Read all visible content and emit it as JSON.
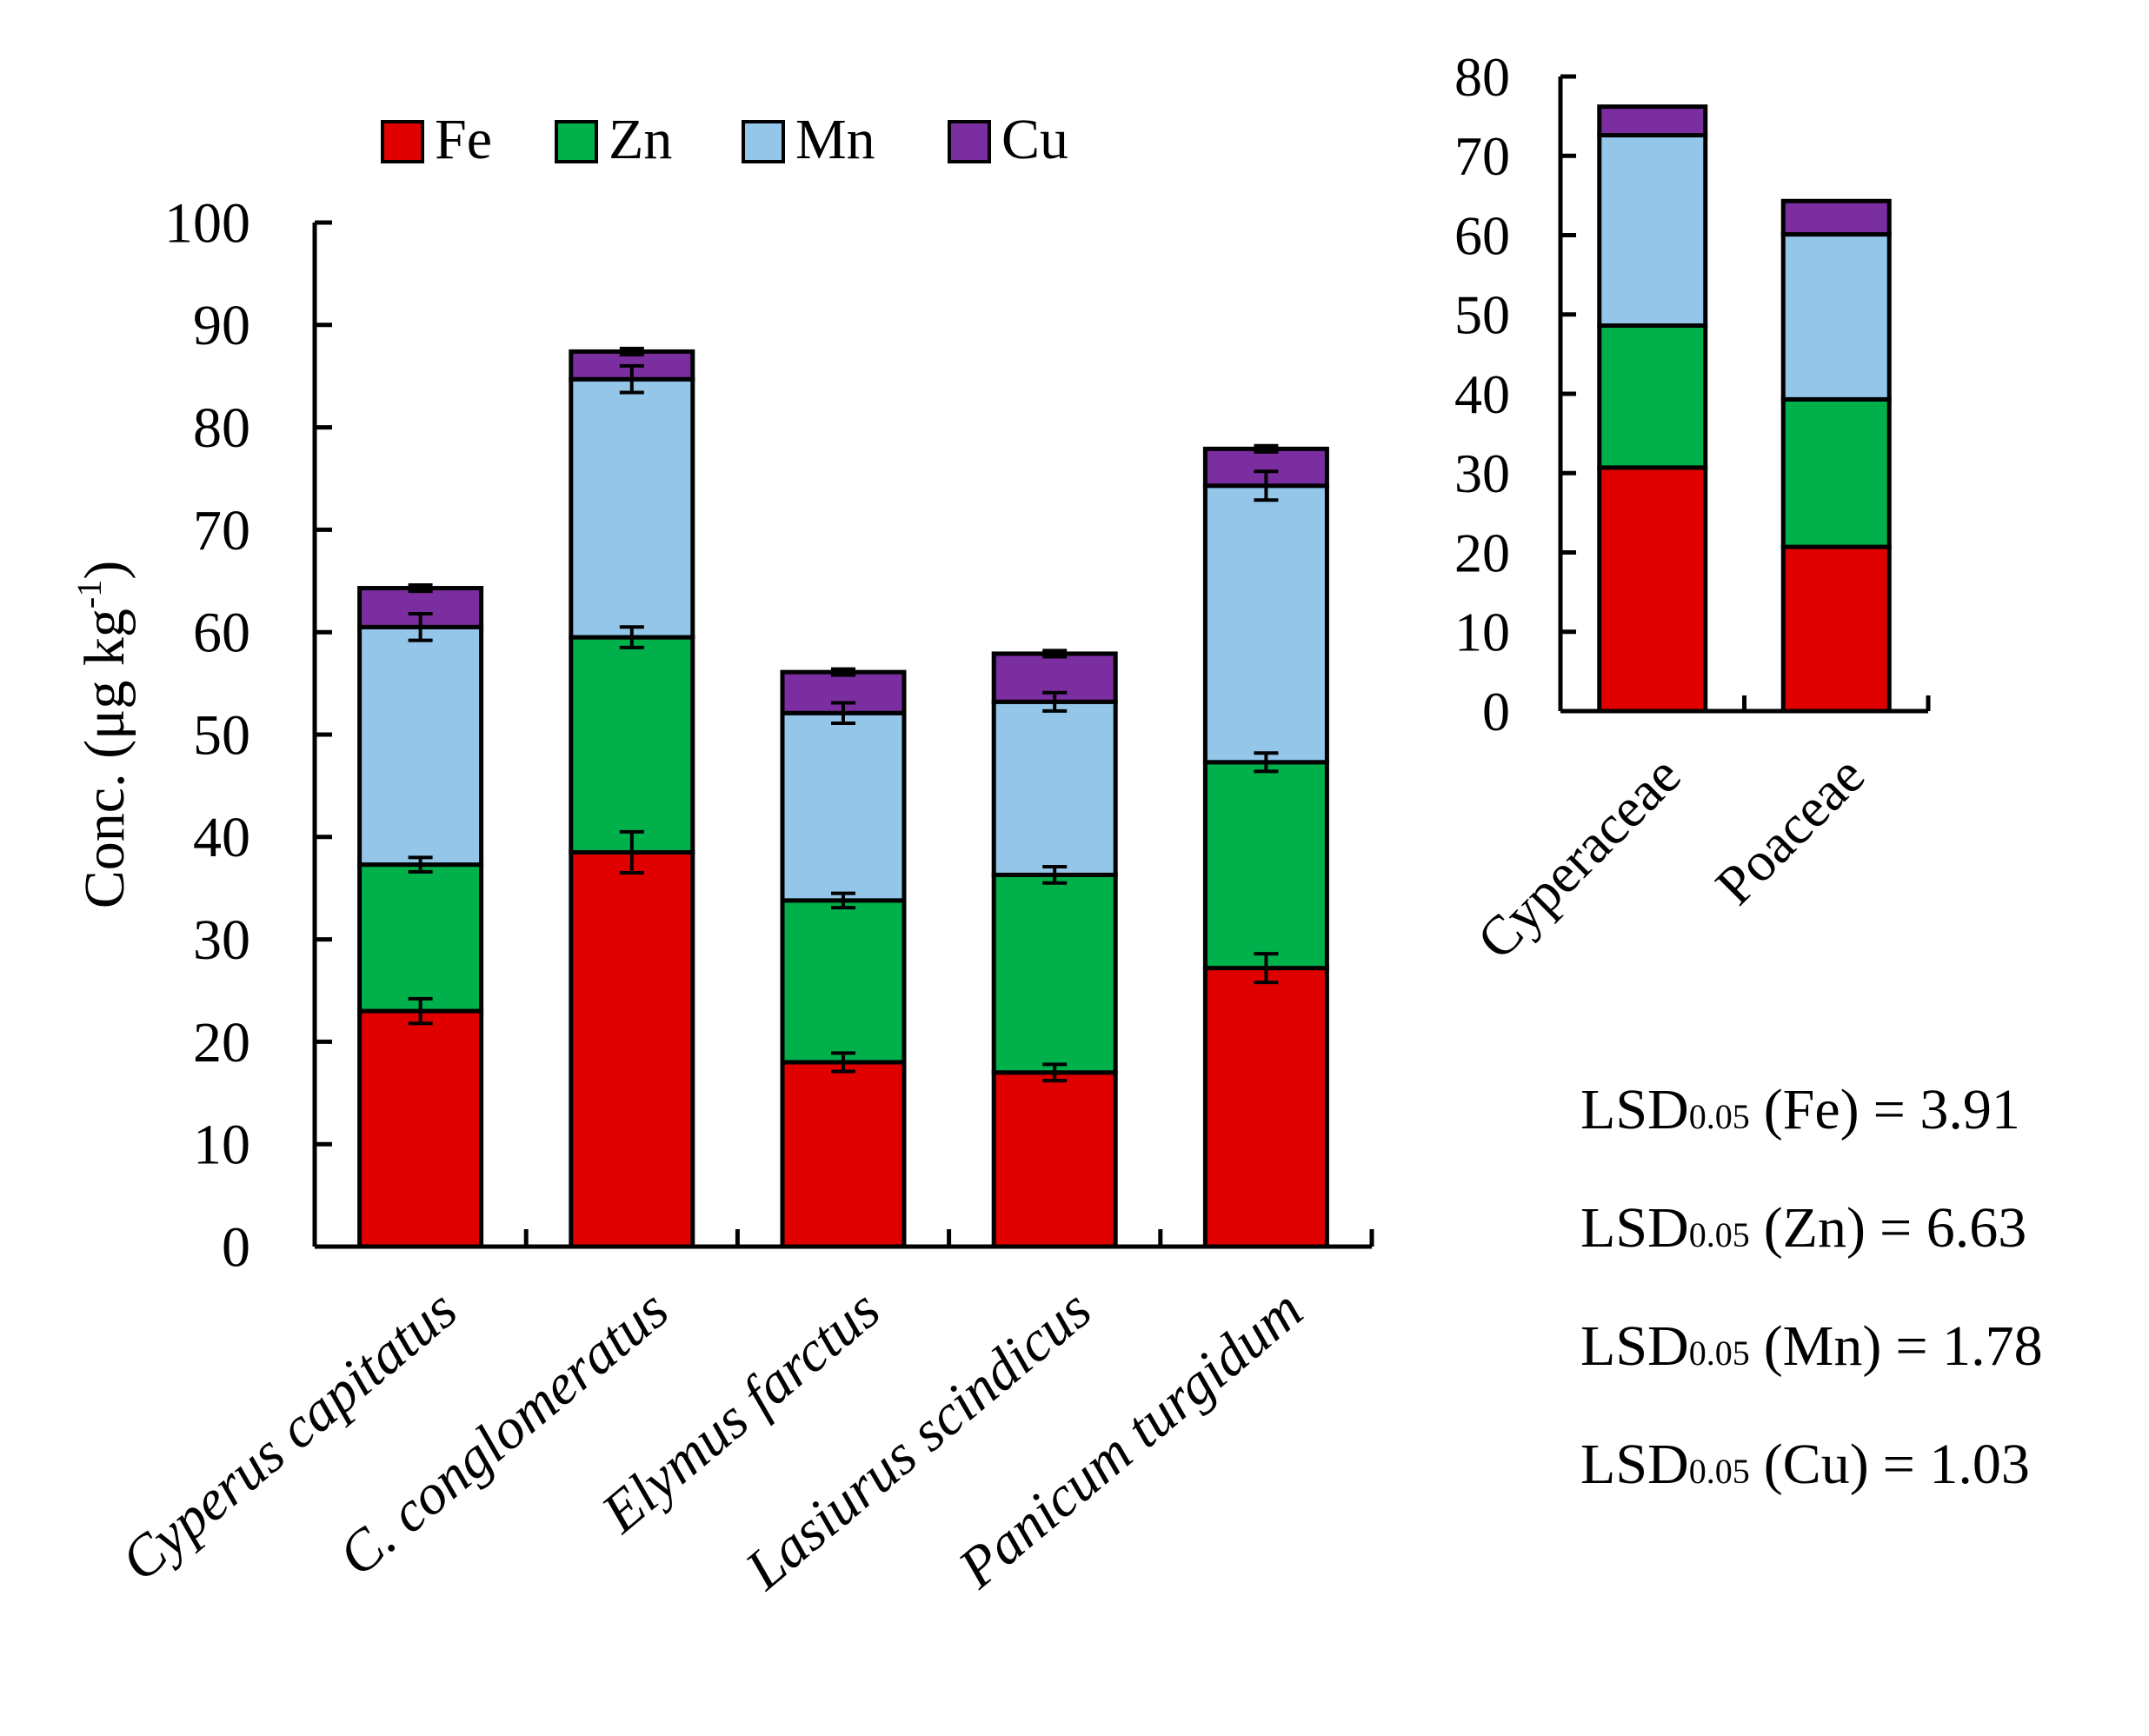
{
  "chart_data": [
    {
      "id": "main",
      "type": "bar",
      "stacked": true,
      "categories": [
        "Cyperus capitatus",
        "C. conglomeratus",
        "Elymus farctus",
        "Lasiurus scindicus",
        "Panicum turgidum"
      ],
      "ylabel": "Conc. (μg kg",
      "ylabel_sup": "-1",
      "ylabel_close": ")",
      "ylim": [
        0,
        100
      ],
      "yticks": [
        "0",
        "10",
        "20",
        "30",
        "40",
        "50",
        "60",
        "70",
        "80",
        "90",
        "100"
      ],
      "legend_position": "top",
      "series": [
        {
          "name": "Fe",
          "values": [
            23.0,
            38.5,
            18.0,
            17.0,
            27.2
          ],
          "errors": [
            1.2,
            2.0,
            0.9,
            0.8,
            1.4
          ]
        },
        {
          "name": "Zn",
          "values": [
            14.3,
            21.0,
            15.8,
            19.3,
            20.1
          ],
          "errors": [
            0.7,
            1.0,
            0.7,
            0.8,
            0.9
          ]
        },
        {
          "name": "Mn",
          "values": [
            23.2,
            25.2,
            18.3,
            16.9,
            27.0
          ],
          "errors": [
            1.3,
            1.3,
            1.0,
            0.9,
            1.4
          ]
        },
        {
          "name": "Cu",
          "values": [
            3.8,
            2.7,
            4.0,
            4.7,
            3.6
          ],
          "errors": [
            0.3,
            0.3,
            0.3,
            0.3,
            0.3
          ]
        }
      ]
    },
    {
      "id": "inset",
      "type": "bar",
      "stacked": true,
      "categories": [
        "Cyperaceae",
        "Poaceae"
      ],
      "ylim": [
        0,
        80
      ],
      "yticks": [
        "0",
        "10",
        "20",
        "30",
        "40",
        "50",
        "60",
        "70",
        "80"
      ],
      "series": [
        {
          "name": "Fe",
          "values": [
            30.7,
            20.7
          ]
        },
        {
          "name": "Zn",
          "values": [
            17.9,
            18.6
          ]
        },
        {
          "name": "Mn",
          "values": [
            24.0,
            20.8
          ]
        },
        {
          "name": "Cu",
          "values": [
            3.6,
            4.2
          ]
        }
      ]
    }
  ],
  "series_colors": {
    "Fe": "#e00000",
    "Zn": "#00b04a",
    "Mn": "#93c6e8",
    "Cu": "#7a2ea0"
  },
  "lsd": {
    "label_main": "LSD",
    "label_sub": "0.05",
    "rows": [
      {
        "element": "(Fe)",
        "value": "= 3.91"
      },
      {
        "element": "(Zn)",
        "value": "= 6.63"
      },
      {
        "element": "(Mn)",
        "value": "= 1.78"
      },
      {
        "element": "(Cu)",
        "value": "= 1.03"
      }
    ]
  }
}
